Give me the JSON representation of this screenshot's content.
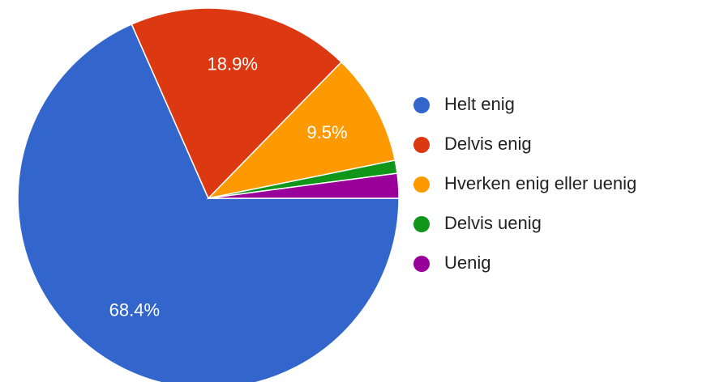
{
  "chart_data": {
    "type": "pie",
    "categories": [
      "Helt enig",
      "Delvis enig",
      "Hverken enig eller uenig",
      "Delvis uenig",
      "Uenig"
    ],
    "values": [
      68.4,
      18.9,
      9.5,
      1.1,
      2.1
    ],
    "value_labels": [
      "68.4%",
      "18.9%",
      "9.5%",
      null,
      null
    ],
    "colors": [
      "#3366cc",
      "#dc3912",
      "#ff9900",
      "#109618",
      "#990099"
    ],
    "legend": "right"
  }
}
